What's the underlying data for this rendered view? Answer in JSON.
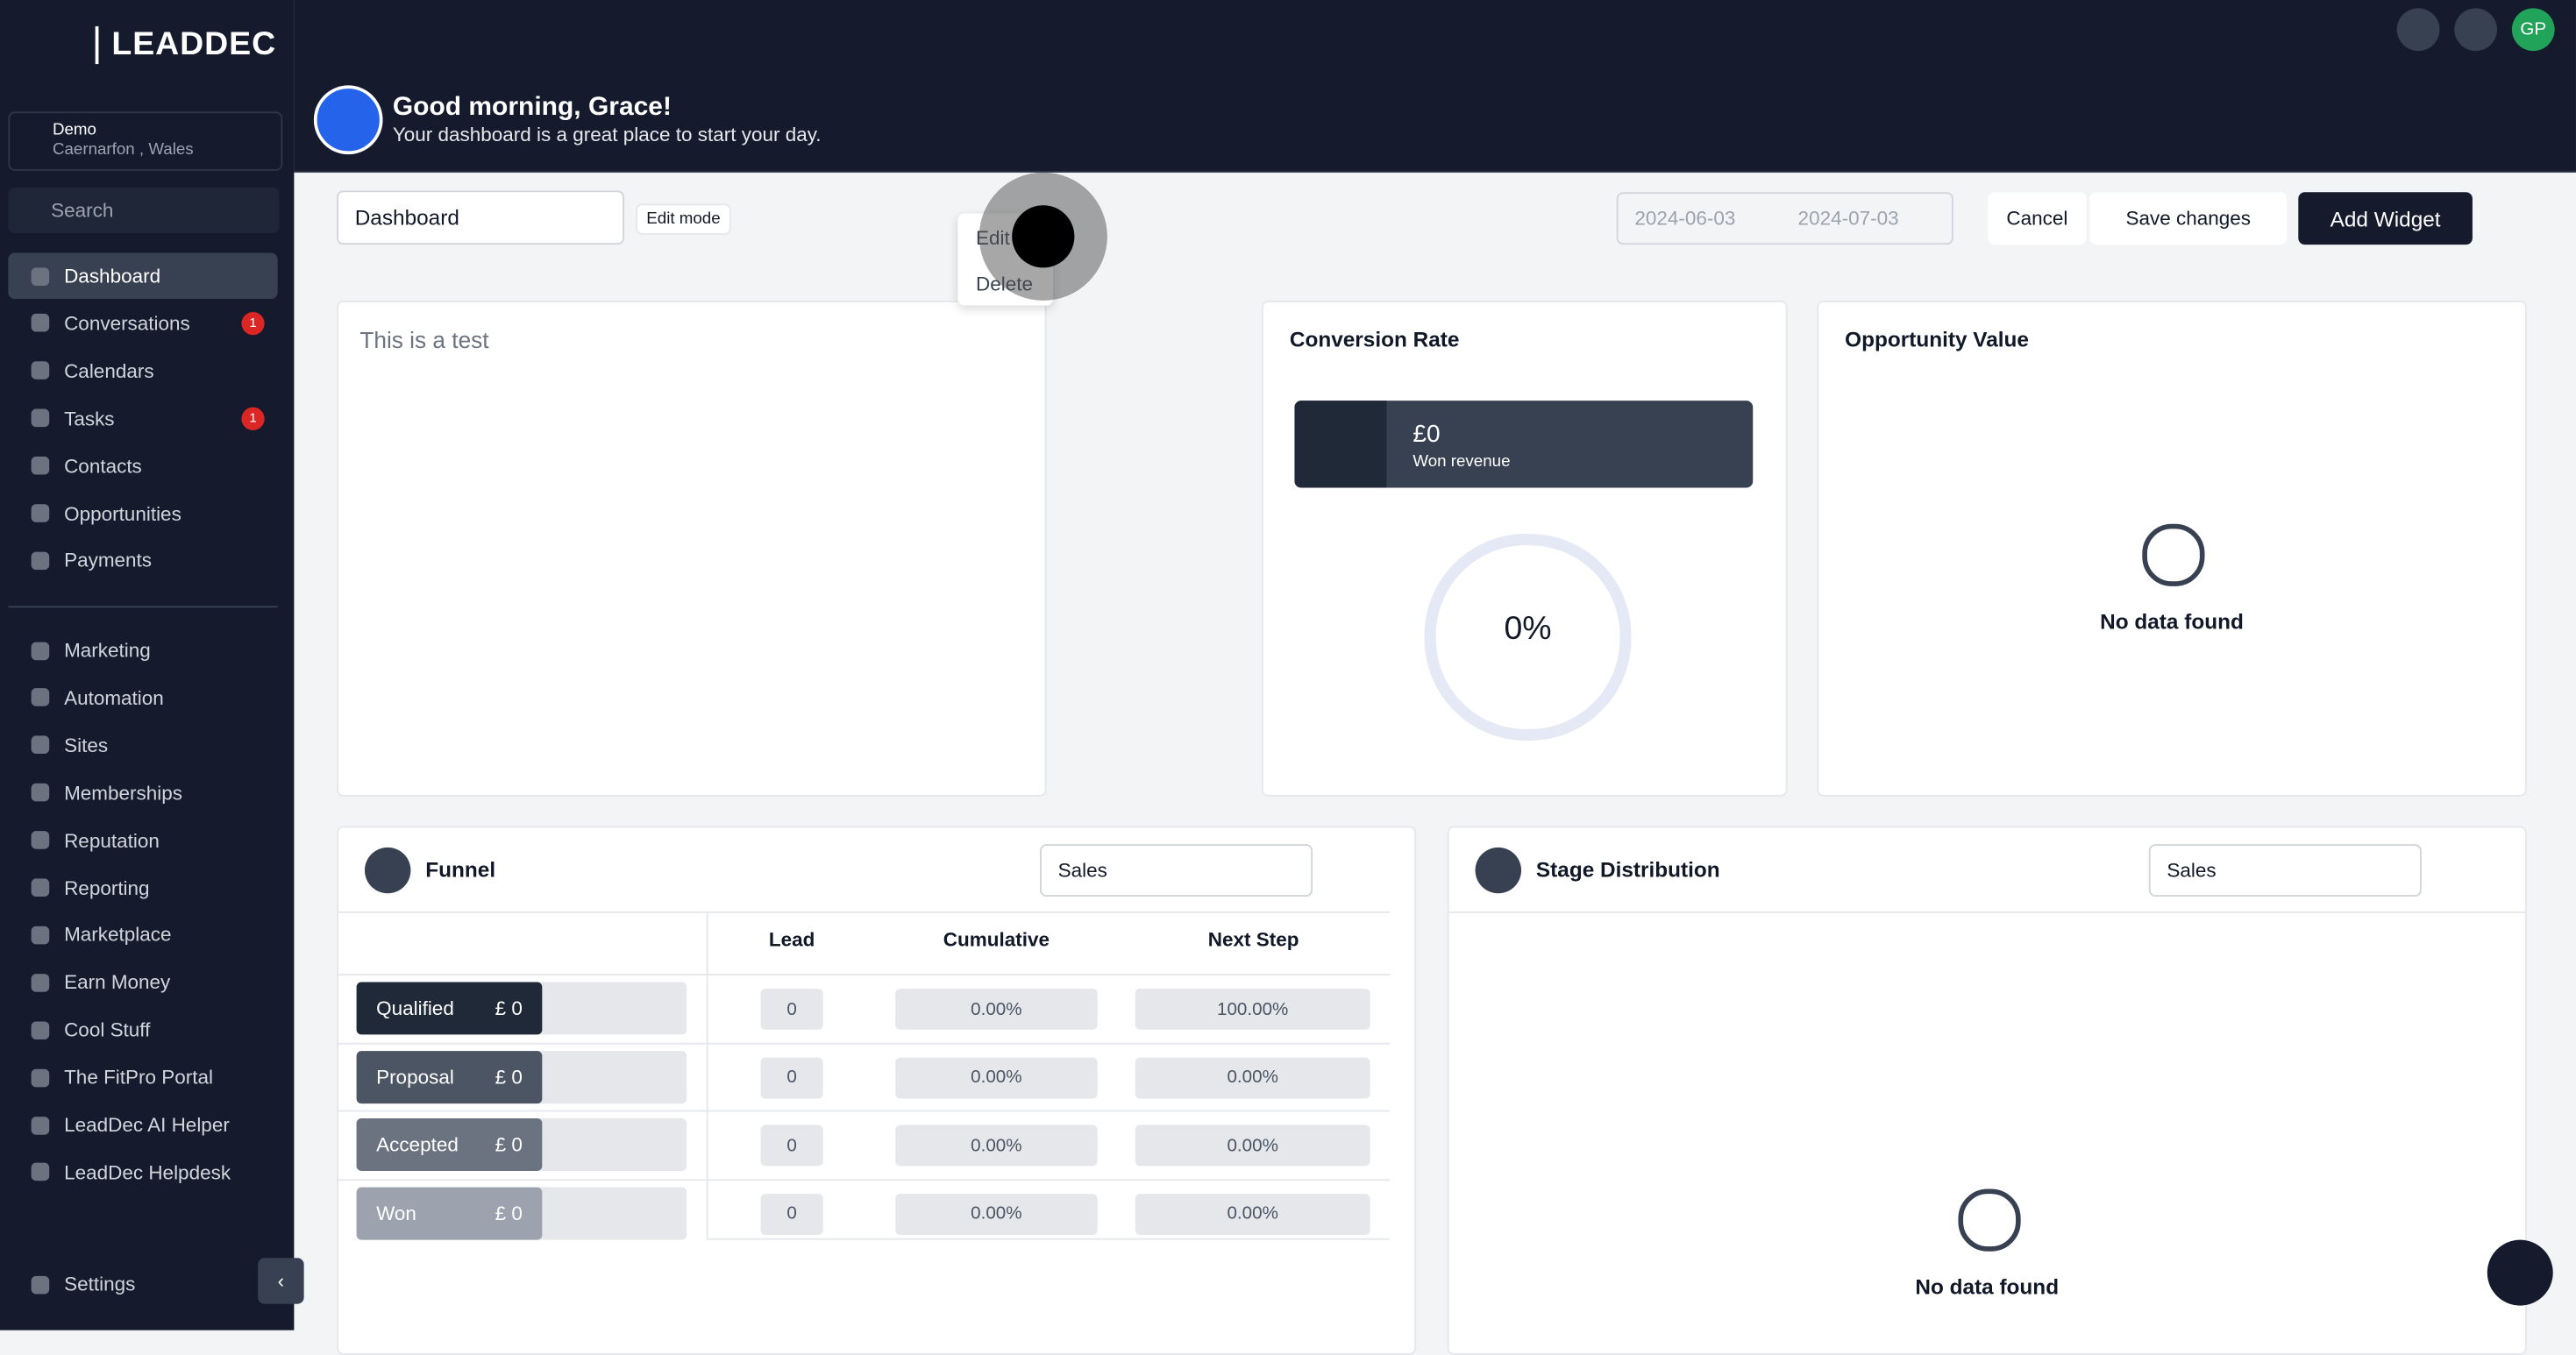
{
  "brand": "LEADDEC",
  "location": {
    "name": "Demo",
    "place": "Caernarfon , Wales"
  },
  "search": "Search",
  "nav": [
    {
      "label": "Dashboard"
    },
    {
      "label": "Conversations",
      "badge": 1
    },
    {
      "label": "Calendars"
    },
    {
      "label": "Tasks",
      "badge": 1
    },
    {
      "label": "Contacts"
    },
    {
      "label": "Opportunities"
    },
    {
      "label": "Payments"
    }
  ],
  "nav2": [
    {
      "label": "Marketing"
    },
    {
      "label": "Automation"
    },
    {
      "label": "Sites"
    },
    {
      "label": "Memberships"
    },
    {
      "label": "Reputation"
    },
    {
      "label": "Reporting"
    },
    {
      "label": "Marketplace"
    },
    {
      "label": "Earn Money"
    },
    {
      "label": "Cool Stuff"
    },
    {
      "label": "The FitPro Portal"
    },
    {
      "label": "LeadDec AI Helper"
    },
    {
      "label": "LeadDec Helpdesk"
    }
  ],
  "settings": "Settings",
  "header": {
    "greeting": "Good morning, Grace!",
    "subtitle": "Your dashboard is a great place to start your day.",
    "avatar": "GP"
  },
  "toolbar": {
    "name": "Dashboard",
    "mode": "Edit mode",
    "menu": [
      "Edit",
      "Delete"
    ],
    "date_from": "2024-06-03",
    "date_to": "2024-07-03",
    "cancel": "Cancel",
    "save": "Save changes",
    "add": "Add Widget"
  },
  "note": {
    "text": "This is a test"
  },
  "conversion": {
    "title": "Conversion Rate",
    "value": "£0",
    "label": "Won revenue",
    "percent": "0%"
  },
  "opportunity": {
    "title": "Opportunity Value",
    "empty": "No data found"
  },
  "funnel": {
    "title": "Funnel",
    "select": "Sales",
    "columns": [
      "Lead",
      "Cumulative",
      "Next Step"
    ],
    "rows": [
      {
        "stage": "Qualified",
        "amount": "£ 0",
        "lead": "0",
        "cumulative": "0.00%",
        "next": "100.00%"
      },
      {
        "stage": "Proposal",
        "amount": "£ 0",
        "lead": "0",
        "cumulative": "0.00%",
        "next": "0.00%"
      },
      {
        "stage": "Accepted",
        "amount": "£ 0",
        "lead": "0",
        "cumulative": "0.00%",
        "next": "0.00%"
      },
      {
        "stage": "Won",
        "amount": "£ 0",
        "lead": "0",
        "cumulative": "0.00%",
        "next": "0.00%"
      }
    ]
  },
  "stage": {
    "title": "Stage Distribution",
    "select": "Sales",
    "empty": "No data found"
  }
}
